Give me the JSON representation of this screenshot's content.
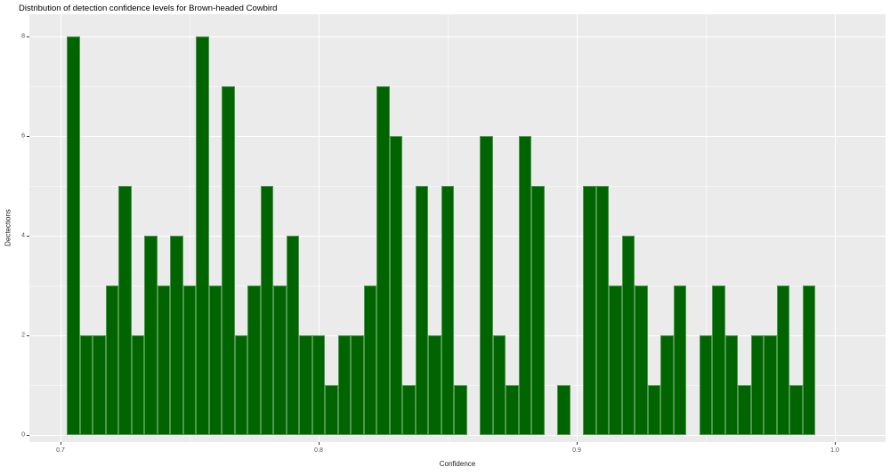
{
  "chart_data": {
    "type": "bar",
    "subtype": "histogram",
    "title": "Distribution of detection confidence levels for Brown-headed Cowbird",
    "xlabel": "Confidence",
    "ylabel": "Dectections",
    "x_tick_labels": [
      "0.7",
      "0.8",
      "0.9",
      "1.0"
    ],
    "x_tick_values": [
      0.7,
      0.8,
      0.9,
      1.0
    ],
    "x_minor_values": [
      0.75,
      0.85,
      0.95
    ],
    "y_tick_labels": [
      "0",
      "2",
      "4",
      "6",
      "8"
    ],
    "y_tick_values": [
      0,
      2,
      4,
      6,
      8
    ],
    "y_minor_values": [
      1,
      3,
      5,
      7
    ],
    "bin_width": 0.005,
    "bin_centers": [
      0.705,
      0.71,
      0.715,
      0.72,
      0.725,
      0.73,
      0.735,
      0.74,
      0.745,
      0.75,
      0.755,
      0.76,
      0.765,
      0.77,
      0.775,
      0.78,
      0.785,
      0.79,
      0.795,
      0.8,
      0.805,
      0.81,
      0.815,
      0.82,
      0.825,
      0.83,
      0.835,
      0.84,
      0.845,
      0.85,
      0.855,
      0.86,
      0.865,
      0.87,
      0.875,
      0.88,
      0.885,
      0.89,
      0.895,
      0.9,
      0.905,
      0.91,
      0.915,
      0.92,
      0.925,
      0.93,
      0.935,
      0.94,
      0.945,
      0.95,
      0.955,
      0.96,
      0.965,
      0.97,
      0.975,
      0.98,
      0.985,
      0.99
    ],
    "counts": [
      8,
      2,
      2,
      3,
      5,
      2,
      4,
      3,
      4,
      3,
      8,
      3,
      7,
      2,
      3,
      5,
      3,
      4,
      2,
      2,
      1,
      2,
      2,
      3,
      7,
      6,
      1,
      5,
      2,
      5,
      1,
      0,
      6,
      2,
      1,
      6,
      5,
      0,
      1,
      0,
      5,
      5,
      3,
      4,
      3,
      1,
      2,
      3,
      0,
      2,
      3,
      2,
      1,
      2,
      2,
      3,
      1,
      3
    ],
    "xlim": [
      0.688,
      1.02
    ],
    "ylim": [
      -0.14,
      8.45
    ],
    "grid": true,
    "legend": false,
    "colors": {
      "bar_fill": "#006400",
      "bar_edge": "rgba(130,185,130,0.6)",
      "panel_bg": "#ebebeb",
      "grid_major": "#ffffff",
      "grid_minor": "rgba(255,255,255,0.55)",
      "tick_text": "#4d4d4d",
      "title_text": "#000000",
      "outer_bg": "#ffffff"
    }
  }
}
